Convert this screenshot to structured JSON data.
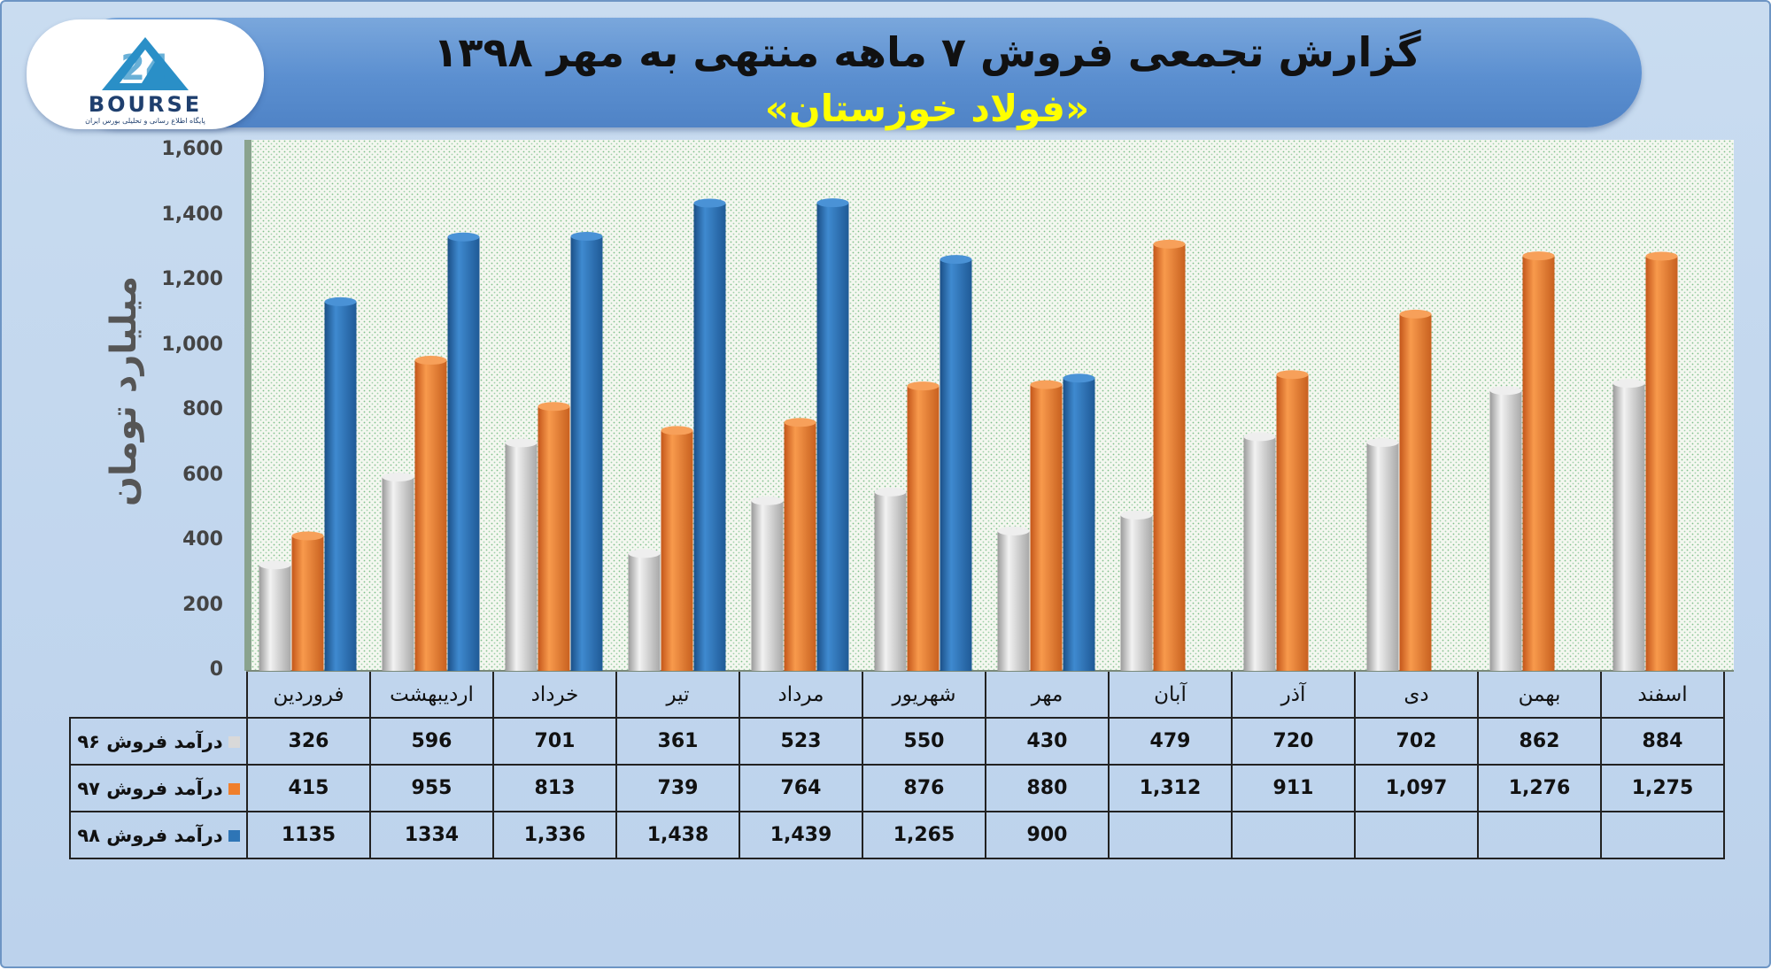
{
  "header": {
    "title": "گزارش تجمعی فروش ۷ ماهه منتهی به مهر ۱۳۹۸",
    "subtitle": "«فولاد خوزستان»"
  },
  "logo": {
    "word": "BOURSE",
    "tagline": "پایگاه اطلاع رسانی و تحلیلی بورس ایران"
  },
  "chart_data": {
    "type": "bar",
    "ylabel": "میلیارد تومان",
    "ylim": [
      0,
      1600
    ],
    "yticks": [
      "0",
      "200",
      "400",
      "600",
      "800",
      "1,000",
      "1,200",
      "1,400",
      "1,600"
    ],
    "categories": [
      "فروردین",
      "اردیبهشت",
      "خرداد",
      "تیر",
      "مرداد",
      "شهریور",
      "مهر",
      "آبان",
      "آذر",
      "دی",
      "بهمن",
      "اسفند"
    ],
    "series": [
      {
        "name": "درآمد فروش ۹۶",
        "color": "#d9d9d9",
        "values": [
          326,
          596,
          701,
          361,
          523,
          550,
          430,
          479,
          720,
          702,
          862,
          884
        ],
        "labels": [
          "326",
          "596",
          "701",
          "361",
          "523",
          "550",
          "430",
          "479",
          "720",
          "702",
          "862",
          "884"
        ]
      },
      {
        "name": "درآمد فروش ۹۷",
        "color": "#f07f2c",
        "values": [
          415,
          955,
          813,
          739,
          764,
          876,
          880,
          1312,
          911,
          1097,
          1276,
          1275
        ],
        "labels": [
          "415",
          "955",
          "813",
          "739",
          "764",
          "876",
          "880",
          "1,312",
          "911",
          "1,097",
          "1,276",
          "1,275"
        ]
      },
      {
        "name": "درآمد فروش ۹۸",
        "color": "#2e75b6",
        "values": [
          1135,
          1334,
          1336,
          1438,
          1439,
          1265,
          900,
          null,
          null,
          null,
          null,
          null
        ],
        "labels": [
          "1135",
          "1334",
          "1,336",
          "1,438",
          "1,439",
          "1,265",
          "900",
          "",
          "",
          "",
          "",
          ""
        ]
      }
    ]
  }
}
